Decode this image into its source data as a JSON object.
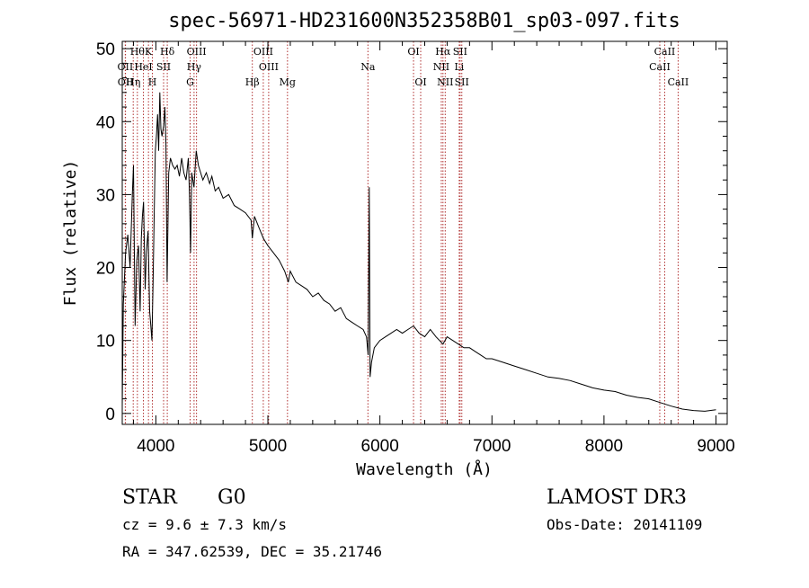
{
  "chart_data": {
    "type": "line",
    "title": "spec-56971-HD231600N352358B01_sp03-097.fits",
    "xlabel": "Wavelength (Å)",
    "ylabel": "Flux (relative)",
    "xlim": [
      3700,
      9100
    ],
    "ylim": [
      -1.5,
      51
    ],
    "x_ticks": [
      4000,
      5000,
      6000,
      7000,
      8000,
      9000
    ],
    "y_ticks": [
      0,
      10,
      20,
      30,
      40,
      50
    ],
    "series": [
      {
        "name": "spectrum",
        "points": [
          [
            3700,
            1.0
          ],
          [
            3710,
            15.0
          ],
          [
            3730,
            22.0
          ],
          [
            3750,
            24.5
          ],
          [
            3770,
            20.0
          ],
          [
            3790,
            30.0
          ],
          [
            3800,
            34.0
          ],
          [
            3815,
            12.0
          ],
          [
            3830,
            21.0
          ],
          [
            3845,
            23.0
          ],
          [
            3860,
            14.0
          ],
          [
            3870,
            24.0
          ],
          [
            3880,
            27.0
          ],
          [
            3890,
            29.0
          ],
          [
            3905,
            17.0
          ],
          [
            3915,
            22.0
          ],
          [
            3930,
            25.0
          ],
          [
            3945,
            14.0
          ],
          [
            3955,
            12.0
          ],
          [
            3965,
            10.0
          ],
          [
            3975,
            18.0
          ],
          [
            3985,
            27.0
          ],
          [
            3995,
            36.0
          ],
          [
            4005,
            38.0
          ],
          [
            4015,
            41.0
          ],
          [
            4025,
            36.0
          ],
          [
            4035,
            44.0
          ],
          [
            4045,
            39.0
          ],
          [
            4055,
            38.0
          ],
          [
            4070,
            39.5
          ],
          [
            4080,
            42.0
          ],
          [
            4090,
            37.0
          ],
          [
            4100,
            18.0
          ],
          [
            4115,
            33.0
          ],
          [
            4130,
            35.0
          ],
          [
            4150,
            34.0
          ],
          [
            4170,
            33.5
          ],
          [
            4190,
            34.0
          ],
          [
            4210,
            32.5
          ],
          [
            4230,
            35.0
          ],
          [
            4250,
            33.0
          ],
          [
            4270,
            32.0
          ],
          [
            4290,
            35.0
          ],
          [
            4300,
            30.0
          ],
          [
            4310,
            22.0
          ],
          [
            4320,
            33.0
          ],
          [
            4340,
            31.0
          ],
          [
            4360,
            36.0
          ],
          [
            4380,
            34.0
          ],
          [
            4400,
            33.0
          ],
          [
            4420,
            32.0
          ],
          [
            4450,
            33.0
          ],
          [
            4480,
            31.5
          ],
          [
            4500,
            32.5
          ],
          [
            4530,
            30.5
          ],
          [
            4560,
            31.0
          ],
          [
            4600,
            29.5
          ],
          [
            4650,
            30.0
          ],
          [
            4700,
            28.5
          ],
          [
            4750,
            28.0
          ],
          [
            4800,
            27.5
          ],
          [
            4850,
            26.5
          ],
          [
            4861,
            24.0
          ],
          [
            4880,
            27.0
          ],
          [
            4920,
            25.5
          ],
          [
            4960,
            24.0
          ],
          [
            5000,
            23.0
          ],
          [
            5050,
            22.0
          ],
          [
            5100,
            21.0
          ],
          [
            5150,
            19.5
          ],
          [
            5183,
            18.0
          ],
          [
            5200,
            19.5
          ],
          [
            5250,
            18.0
          ],
          [
            5300,
            17.5
          ],
          [
            5350,
            17.0
          ],
          [
            5400,
            16.0
          ],
          [
            5450,
            16.5
          ],
          [
            5500,
            15.5
          ],
          [
            5550,
            15.0
          ],
          [
            5600,
            14.0
          ],
          [
            5650,
            14.5
          ],
          [
            5700,
            13.0
          ],
          [
            5750,
            12.5
          ],
          [
            5800,
            12.0
          ],
          [
            5850,
            11.5
          ],
          [
            5880,
            10.5
          ],
          [
            5895,
            8.0
          ],
          [
            5905,
            31.0
          ],
          [
            5912,
            5.0
          ],
          [
            5925,
            7.0
          ],
          [
            5950,
            9.0
          ],
          [
            6000,
            10.0
          ],
          [
            6050,
            10.5
          ],
          [
            6100,
            11.0
          ],
          [
            6150,
            11.5
          ],
          [
            6200,
            11.0
          ],
          [
            6250,
            11.5
          ],
          [
            6300,
            12.0
          ],
          [
            6350,
            11.0
          ],
          [
            6400,
            10.5
          ],
          [
            6450,
            11.5
          ],
          [
            6500,
            10.5
          ],
          [
            6563,
            9.5
          ],
          [
            6600,
            10.5
          ],
          [
            6650,
            10.0
          ],
          [
            6700,
            9.5
          ],
          [
            6750,
            9.0
          ],
          [
            6800,
            9.0
          ],
          [
            6850,
            8.5
          ],
          [
            6900,
            8.0
          ],
          [
            6950,
            7.5
          ],
          [
            7000,
            7.5
          ],
          [
            7100,
            7.0
          ],
          [
            7200,
            6.5
          ],
          [
            7300,
            6.0
          ],
          [
            7400,
            5.5
          ],
          [
            7500,
            5.0
          ],
          [
            7600,
            4.8
          ],
          [
            7700,
            4.5
          ],
          [
            7800,
            4.0
          ],
          [
            7900,
            3.5
          ],
          [
            8000,
            3.2
          ],
          [
            8100,
            3.0
          ],
          [
            8200,
            2.5
          ],
          [
            8300,
            2.2
          ],
          [
            8400,
            2.0
          ],
          [
            8500,
            1.5
          ],
          [
            8600,
            1.0
          ],
          [
            8700,
            0.6
          ],
          [
            8800,
            0.4
          ],
          [
            8900,
            0.3
          ],
          [
            9000,
            0.5
          ]
        ]
      }
    ],
    "line_markers": [
      {
        "wavelength": 3835,
        "label": "Hθ",
        "row": 0
      },
      {
        "wavelength": 3889,
        "label": "HeI",
        "row": 1
      },
      {
        "wavelength": 3934,
        "label": "K",
        "row": 0
      },
      {
        "wavelength": 3969,
        "label": "H",
        "row": 2
      },
      {
        "wavelength": 4102,
        "label": "Hδ",
        "row": 0
      },
      {
        "wavelength": 4069,
        "label": "SII",
        "row": 1
      },
      {
        "wavelength": 4341,
        "label": "Hγ",
        "row": 1
      },
      {
        "wavelength": 4306,
        "label": "G",
        "row": 2
      },
      {
        "wavelength": 4363,
        "label": "OIII",
        "row": 0
      },
      {
        "wavelength": 4861,
        "label": "Hβ",
        "row": 2
      },
      {
        "wavelength": 4959,
        "label": "OIII",
        "row": 0
      },
      {
        "wavelength": 5007,
        "label": "OIII",
        "row": 1
      },
      {
        "wavelength": 5175,
        "label": "Mg",
        "row": 2
      },
      {
        "wavelength": 5893,
        "label": "Na",
        "row": 1
      },
      {
        "wavelength": 6300,
        "label": "OI",
        "row": 0
      },
      {
        "wavelength": 6364,
        "label": "OI",
        "row": 2
      },
      {
        "wavelength": 6548,
        "label": "NII",
        "row": 1
      },
      {
        "wavelength": 6563,
        "label": "Hα",
        "row": 0
      },
      {
        "wavelength": 6583,
        "label": "NII",
        "row": 2
      },
      {
        "wavelength": 6708,
        "label": "Li",
        "row": 1
      },
      {
        "wavelength": 6716,
        "label": "SII",
        "row": 0
      },
      {
        "wavelength": 6731,
        "label": "SII",
        "row": 2
      },
      {
        "wavelength": 3727,
        "label": "OII",
        "row": 1
      },
      {
        "wavelength": 3729,
        "label": "OII",
        "row": 2
      },
      {
        "wavelength": 3798,
        "label": "Hη",
        "row": 2
      },
      {
        "wavelength": 8498,
        "label": "CaII",
        "row": 1
      },
      {
        "wavelength": 8542,
        "label": "CaII",
        "row": 0
      },
      {
        "wavelength": 8662,
        "label": "CaII",
        "row": 2
      }
    ]
  },
  "info": {
    "object_class": "STAR",
    "subclass": "G0",
    "survey": "LAMOST DR3",
    "redshift": "cz = 9.6 ± 7.3 km/s",
    "obs_date": "Obs-Date: 20141109",
    "coords": "RA = 347.62539, DEC =  35.21746"
  },
  "colors": {
    "spectrum": "#000000",
    "marker": "#b03030",
    "axis": "#000000",
    "background": "#ffffff"
  }
}
